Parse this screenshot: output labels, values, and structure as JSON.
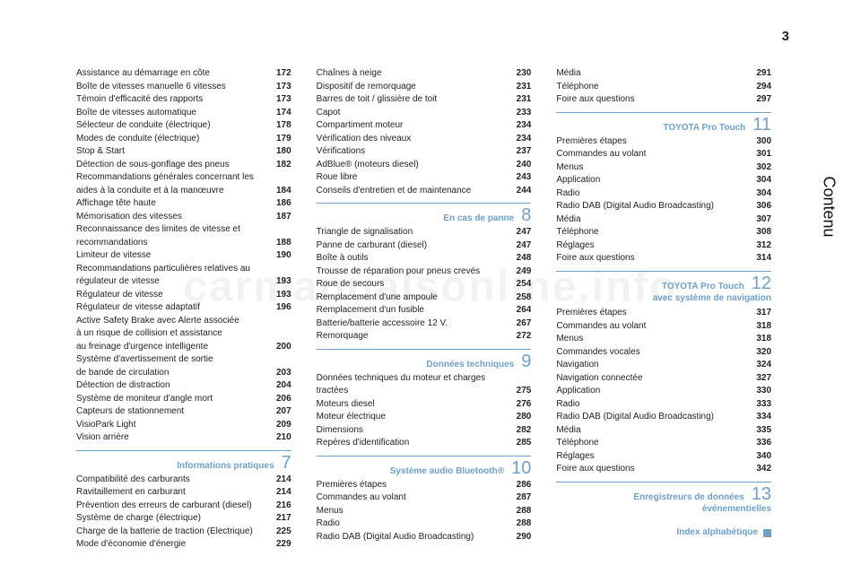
{
  "page_number": "3",
  "side_tab": "Contenu",
  "watermark": "carmanualsonline.info",
  "index_label": "Index alphabétique",
  "colors": {
    "accent": "#6fa0c9",
    "text": "#222222",
    "background": "#ffffff"
  },
  "typography": {
    "body_fontsize": 10,
    "section_num_fontsize": 20,
    "page_num_fontsize": 15,
    "side_tab_fontsize": 18
  },
  "col1": {
    "items": [
      {
        "label": "Assistance au démarrage en côte",
        "page": "172"
      },
      {
        "label": "Boîte de vitesses manuelle 6 vitesses",
        "page": "173"
      },
      {
        "label": "Témoin d'efficacité des rapports",
        "page": "173"
      },
      {
        "label": "Boîte de vitesses automatique",
        "page": "174"
      },
      {
        "label": "Sélecteur de conduite (électrique)",
        "page": "178"
      },
      {
        "label": "Modes de conduite (électrique)",
        "page": "179"
      },
      {
        "label": "Stop & Start",
        "page": "180"
      },
      {
        "label": "Détection de sous-gonflage des pneus",
        "page": "182"
      },
      {
        "label": "Recommandations générales concernant les",
        "page": ""
      },
      {
        "label": "aides à la conduite et à la manœuvre",
        "page": "184"
      },
      {
        "label": "Affichage tête haute",
        "page": "186"
      },
      {
        "label": "Mémorisation des vitesses",
        "page": "187"
      },
      {
        "label": "Reconnaissance des limites de vitesse et",
        "page": ""
      },
      {
        "label": "recommandations",
        "page": "188"
      },
      {
        "label": "Limiteur de vitesse",
        "page": "190"
      },
      {
        "label": "Recommandations particulières relatives au",
        "page": ""
      },
      {
        "label": "régulateur de vitesse",
        "page": "193"
      },
      {
        "label": "Régulateur de vitesse",
        "page": "193"
      },
      {
        "label": "Régulateur de vitesse adaptatif",
        "page": "196"
      },
      {
        "label": "Active Safety Brake avec Alerte associée",
        "page": ""
      },
      {
        "label": "à un risque de collision et assistance",
        "page": ""
      },
      {
        "label": "au freinage d'urgence intelligente",
        "page": "200"
      },
      {
        "label": "Système d'avertissement de sortie",
        "page": ""
      },
      {
        "label": "de bande de circulation",
        "page": "203"
      },
      {
        "label": "Détection de distraction",
        "page": "204"
      },
      {
        "label": "Système de moniteur d'angle mort",
        "page": "206"
      },
      {
        "label": "Capteurs de stationnement",
        "page": "207"
      },
      {
        "label": "VisioPark Light",
        "page": "209"
      },
      {
        "label": "Vision arrière",
        "page": "210"
      }
    ],
    "section7": {
      "title": "Informations pratiques",
      "num": "7"
    },
    "items7": [
      {
        "label": "Compatibilité des carburants",
        "page": "214"
      },
      {
        "label": "Ravitaillement en carburant",
        "page": "214"
      },
      {
        "label": "Prévention des erreurs de carburant (diesel)",
        "page": "216"
      },
      {
        "label": "Système de charge (électrique)",
        "page": "217"
      },
      {
        "label": "Charge de la batterie de traction (Electrique)",
        "page": "225"
      },
      {
        "label": "Mode d'économie d'énergie",
        "page": "229"
      }
    ]
  },
  "col2": {
    "items_top": [
      {
        "label": "Chaînes à neige",
        "page": "230"
      },
      {
        "label": "Dispositif de remorquage",
        "page": "231"
      },
      {
        "label": "Barres de toit / glissière de toit",
        "page": "231"
      },
      {
        "label": "Capot",
        "page": "233"
      },
      {
        "label": "Compartiment moteur",
        "page": "234"
      },
      {
        "label": "Vérification des niveaux",
        "page": "234"
      },
      {
        "label": "Vérifications",
        "page": "237"
      },
      {
        "label": "AdBlue® (moteurs diesel)",
        "page": "240"
      },
      {
        "label": "Roue libre",
        "page": "243"
      },
      {
        "label": "Conseils d'entretien et de maintenance",
        "page": "244"
      }
    ],
    "section8": {
      "title": "En cas de panne",
      "num": "8"
    },
    "items8": [
      {
        "label": "Triangle de signalisation",
        "page": "247"
      },
      {
        "label": "Panne de carburant (diesel)",
        "page": "247"
      },
      {
        "label": "Boîte à outils",
        "page": "248"
      },
      {
        "label": "Trousse de réparation pour pneus crevés",
        "page": "249"
      },
      {
        "label": "Roue de secours",
        "page": "254"
      },
      {
        "label": "Remplacement d'une ampoule",
        "page": "258"
      },
      {
        "label": "Remplacement d'un fusible",
        "page": "264"
      },
      {
        "label": "Batterie/batterie accessoire 12 V.",
        "page": "267"
      },
      {
        "label": "Remorquage",
        "page": "272"
      }
    ],
    "section9": {
      "title": "Données techniques",
      "num": "9"
    },
    "items9": [
      {
        "label": "Données techniques du moteur et charges",
        "page": ""
      },
      {
        "label": "tractées",
        "page": "275"
      },
      {
        "label": "Moteurs diesel",
        "page": "276"
      },
      {
        "label": "Moteur électrique",
        "page": "280"
      },
      {
        "label": "Dimensions",
        "page": "282"
      },
      {
        "label": "Repères d'identification",
        "page": "285"
      }
    ],
    "section10": {
      "title": "Système audio Bluetooth®",
      "num": "10"
    },
    "items10": [
      {
        "label": "Premières étapes",
        "page": "286"
      },
      {
        "label": "Commandes au volant",
        "page": "287"
      },
      {
        "label": "Menus",
        "page": "288"
      },
      {
        "label": "Radio",
        "page": "288"
      },
      {
        "label": "Radio DAB (Digital Audio Broadcasting)",
        "page": "290"
      }
    ]
  },
  "col3": {
    "items_top": [
      {
        "label": "Média",
        "page": "291"
      },
      {
        "label": "Téléphone",
        "page": "294"
      },
      {
        "label": "Foire aux questions",
        "page": "297"
      }
    ],
    "section11": {
      "title": "TOYOTA Pro Touch",
      "num": "11"
    },
    "items11": [
      {
        "label": "Premières étapes",
        "page": "300"
      },
      {
        "label": "Commandes au volant",
        "page": "301"
      },
      {
        "label": "Menus",
        "page": "302"
      },
      {
        "label": "Application",
        "page": "304"
      },
      {
        "label": "Radio",
        "page": "304"
      },
      {
        "label": "Radio DAB (Digital Audio Broadcasting)",
        "page": "306"
      },
      {
        "label": "Média",
        "page": "307"
      },
      {
        "label": "Téléphone",
        "page": "308"
      },
      {
        "label": "Réglages",
        "page": "312"
      },
      {
        "label": "Foire aux questions",
        "page": "314"
      }
    ],
    "section12": {
      "title": "TOYOTA Pro Touch",
      "subtitle": "avec système de navigation",
      "num": "12"
    },
    "items12": [
      {
        "label": "Premières étapes",
        "page": "317"
      },
      {
        "label": "Commandes au volant",
        "page": "318"
      },
      {
        "label": "Menus",
        "page": "318"
      },
      {
        "label": "Commandes vocales",
        "page": "320"
      },
      {
        "label": "Navigation",
        "page": "324"
      },
      {
        "label": "Navigation connectée",
        "page": "327"
      },
      {
        "label": "Application",
        "page": "330"
      },
      {
        "label": "Radio",
        "page": "333"
      },
      {
        "label": "Radio DAB (Digital Audio Broadcasting)",
        "page": "334"
      },
      {
        "label": "Média",
        "page": "335"
      },
      {
        "label": "Téléphone",
        "page": "336"
      },
      {
        "label": "Réglages",
        "page": "340"
      },
      {
        "label": "Foire aux questions",
        "page": "342"
      }
    ],
    "section13": {
      "title": "Enregistreurs de données",
      "subtitle": "événementielles",
      "num": "13"
    }
  }
}
